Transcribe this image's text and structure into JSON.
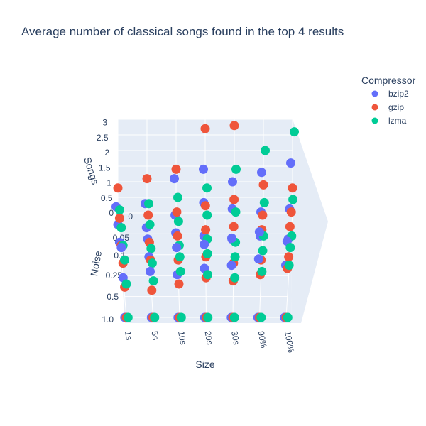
{
  "chart_data": {
    "type": "scatter",
    "title": "Average number of classical songs found in the top 4 results",
    "xlabel": "Size",
    "ylabel": "Noise",
    "zlabel": "Songs",
    "x_ticks": [
      "1s",
      "5s",
      "10s",
      "20s",
      "30s",
      "90%",
      "100%"
    ],
    "y_ticks": [
      "0",
      "0.05",
      "0.1",
      "0.25",
      "0.5",
      "1.0"
    ],
    "z_ticks": [
      "0",
      "0.5",
      "1",
      "1.5",
      "2",
      "2.5",
      "3"
    ],
    "zlim": [
      0,
      3
    ],
    "legend_title": "Compressor",
    "legend_position": "top-right",
    "series": [
      {
        "name": "bzip2",
        "color": "#636efa",
        "values": [
          [
            0.2,
            0.3,
            1.1,
            1.4,
            1.0,
            1.3,
            1.6
          ],
          [
            0.3,
            0.2,
            0.6,
            1.0,
            0.8,
            0.7,
            0.8
          ],
          [
            0.4,
            0.5,
            0.7,
            0.6,
            0.5,
            0.6,
            0.5
          ],
          [
            0.9,
            0.6,
            0.9,
            1.0,
            1.2,
            1.4,
            1.1
          ],
          [
            0.6,
            0.8,
            0.7,
            0.9,
            1.0,
            1.2,
            1.0
          ],
          [
            0.0,
            0.0,
            0.0,
            0.0,
            0.0,
            0.0,
            0.0
          ]
        ]
      },
      {
        "name": "gzip",
        "color": "#ef553b",
        "values": [
          [
            0.8,
            1.1,
            1.4,
            2.7,
            2.8,
            0.9,
            0.8
          ],
          [
            0.5,
            0.6,
            0.7,
            0.9,
            1.1,
            0.6,
            0.7
          ],
          [
            0.3,
            0.4,
            0.6,
            0.8,
            0.9,
            0.8,
            0.9
          ],
          [
            0.4,
            0.5,
            0.5,
            0.6,
            0.4,
            0.5,
            0.6
          ],
          [
            0.3,
            0.2,
            0.4,
            0.6,
            0.5,
            0.7,
            0.9
          ],
          [
            0.0,
            0.0,
            0.0,
            0.0,
            0.0,
            0.0,
            0.0
          ]
        ]
      },
      {
        "name": "lzma",
        "color": "#00cc96",
        "values": [
          [
            0.1,
            0.3,
            0.5,
            0.8,
            1.4,
            2.0,
            2.6
          ],
          [
            0.2,
            0.3,
            0.4,
            0.6,
            0.7,
            1.0,
            1.1
          ],
          [
            0.3,
            0.2,
            0.3,
            0.5,
            0.4,
            0.6,
            0.6
          ],
          [
            0.5,
            0.4,
            0.6,
            0.7,
            0.6,
            0.8,
            0.9
          ],
          [
            0.4,
            0.5,
            0.8,
            0.7,
            0.6,
            0.8,
            1.0
          ],
          [
            0.0,
            0.0,
            0.0,
            0.0,
            0.0,
            0.0,
            0.0
          ]
        ]
      }
    ]
  }
}
